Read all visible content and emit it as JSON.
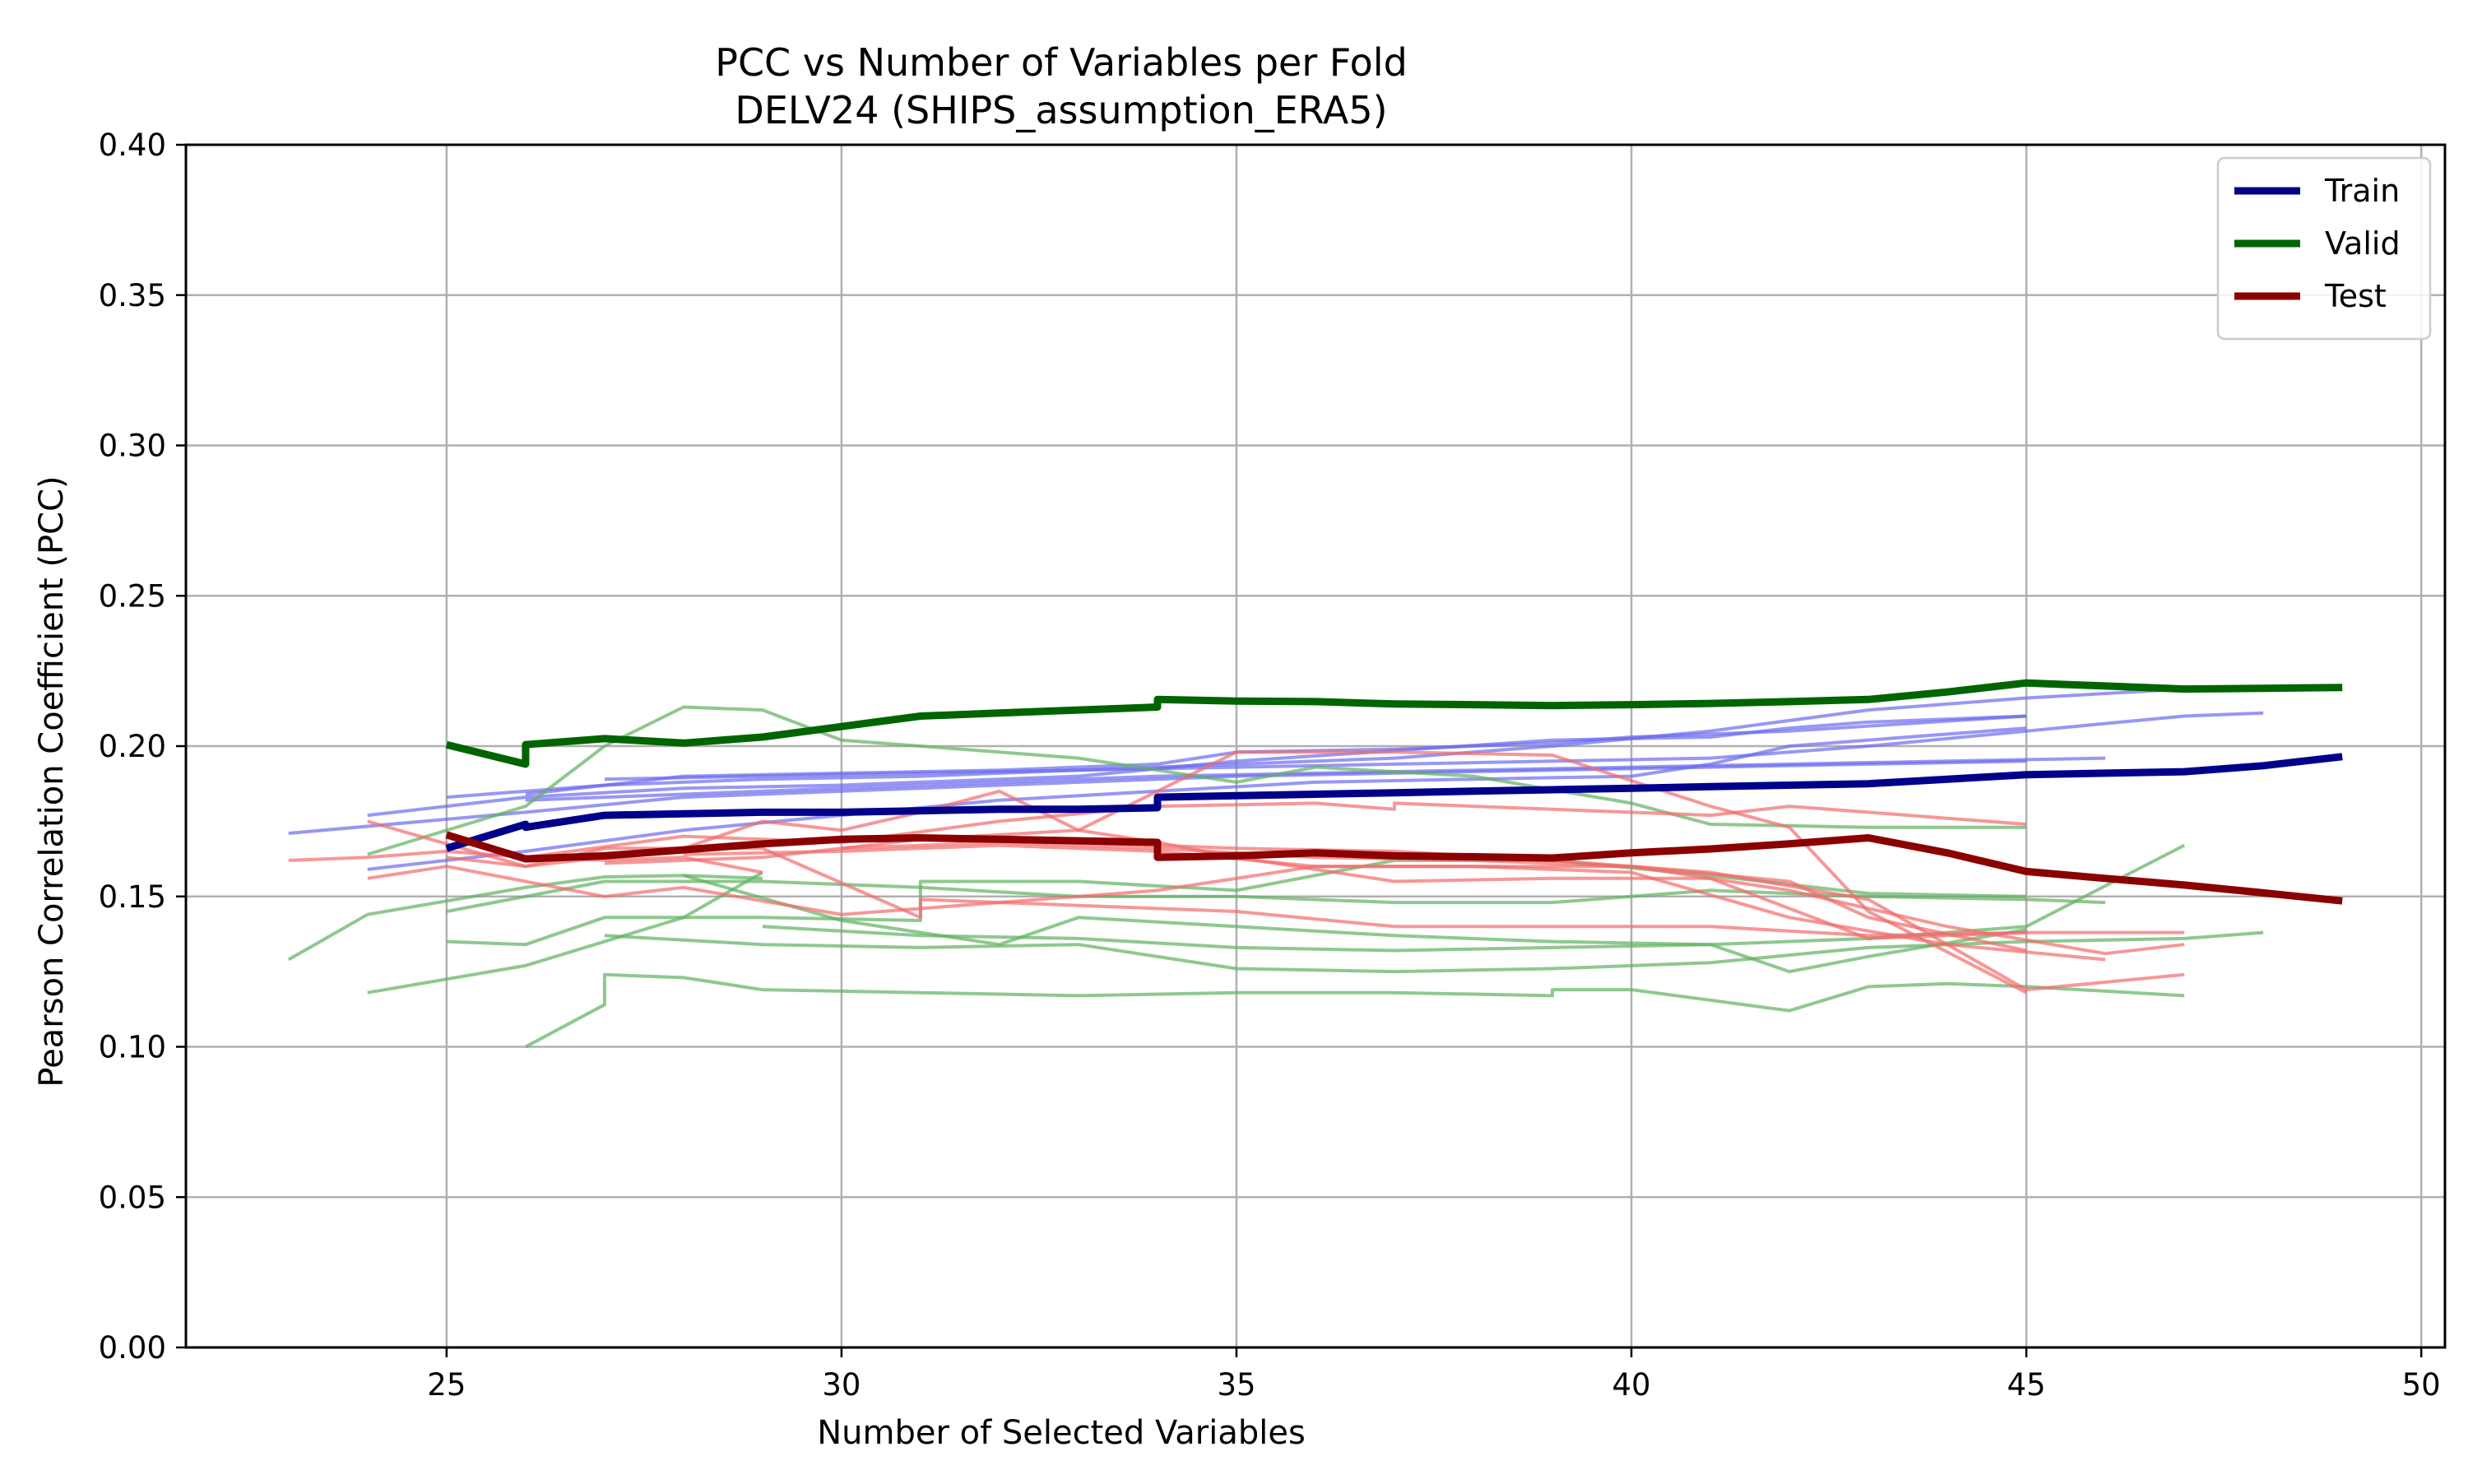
{
  "chart_data": {
    "type": "line",
    "title": "PCC vs Number of Variables per Fold",
    "subtitle": "DELV24 (SHIPS_assumption_ERA5)",
    "xlabel": "Number of Selected Variables",
    "ylabel": "Pearson Correlation Coefficient (PCC)",
    "xlim": [
      21.7,
      50.3
    ],
    "ylim": [
      0.0,
      0.4
    ],
    "x_ticks": [
      "25",
      "30",
      "35",
      "40",
      "45",
      "50"
    ],
    "y_ticks": [
      "0.00",
      "0.05",
      "0.10",
      "0.15",
      "0.20",
      "0.25",
      "0.30",
      "0.35",
      "0.40"
    ],
    "grid": true,
    "legend_position": "top-right",
    "colors": {
      "train": "#00008b",
      "valid": "#006400",
      "test": "#8b0000",
      "train_fold": "#6b6bf0",
      "valid_fold": "#5fb05f",
      "test_fold": "#f26b6b",
      "grid": "#b0b0b0"
    },
    "series": [
      {
        "name": "Train",
        "role": "main",
        "group": "train",
        "x": [
          25,
          26,
          26,
          27,
          28,
          29,
          30,
          31,
          32,
          33,
          34,
          34,
          35,
          36,
          37,
          38,
          39,
          40,
          41,
          42,
          43,
          44,
          45,
          46,
          47,
          48,
          49
        ],
        "y": [
          0.166,
          0.174,
          0.173,
          0.177,
          0.1775,
          0.178,
          0.178,
          0.1785,
          0.179,
          0.179,
          0.1795,
          0.183,
          0.1835,
          0.184,
          0.1845,
          0.185,
          0.1855,
          0.186,
          0.1865,
          0.187,
          0.1875,
          0.189,
          0.1905,
          0.191,
          0.1915,
          0.1935,
          0.1965
        ]
      },
      {
        "name": "Valid",
        "role": "main",
        "group": "valid",
        "x": [
          25,
          26,
          26,
          27,
          28,
          29,
          30,
          31,
          32,
          33,
          34,
          34,
          35,
          36,
          37,
          38,
          39,
          40,
          41,
          42,
          43,
          44,
          45,
          46,
          47,
          48,
          49
        ],
        "y": [
          0.2005,
          0.194,
          0.2005,
          0.2025,
          0.201,
          0.203,
          0.2065,
          0.21,
          0.211,
          0.212,
          0.213,
          0.2155,
          0.215,
          0.2148,
          0.214,
          0.2138,
          0.2135,
          0.2138,
          0.2142,
          0.2148,
          0.2155,
          0.218,
          0.221,
          0.22,
          0.219,
          0.2192,
          0.2195
        ]
      },
      {
        "name": "Test",
        "role": "main",
        "group": "test",
        "x": [
          25,
          26,
          27,
          28,
          29,
          30,
          31,
          32,
          33,
          34,
          34,
          35,
          36,
          37,
          38,
          39,
          40,
          41,
          42,
          43,
          44,
          45,
          46,
          47,
          48,
          49
        ],
        "y": [
          0.1705,
          0.1625,
          0.1635,
          0.1655,
          0.1675,
          0.169,
          0.1695,
          0.169,
          0.1685,
          0.168,
          0.163,
          0.1635,
          0.1645,
          0.1635,
          0.1632,
          0.1628,
          0.1645,
          0.1658,
          0.1675,
          0.1695,
          0.1645,
          0.1583,
          0.156,
          0.1538,
          0.1512,
          0.1485
        ]
      },
      {
        "role": "fold",
        "group": "train",
        "x": [
          23,
          26,
          28,
          30,
          33,
          35,
          37,
          39,
          41,
          43,
          45
        ],
        "y": [
          0.171,
          0.178,
          0.183,
          0.185,
          0.188,
          0.19,
          0.191,
          0.192,
          0.193,
          0.194,
          0.195
        ]
      },
      {
        "role": "fold",
        "group": "train",
        "x": [
          24,
          26,
          28,
          30,
          33,
          35,
          39,
          41,
          42,
          43,
          45
        ],
        "y": [
          0.177,
          0.183,
          0.186,
          0.187,
          0.19,
          0.195,
          0.202,
          0.203,
          0.206,
          0.208,
          0.21
        ]
      },
      {
        "role": "fold",
        "group": "train",
        "x": [
          25,
          27,
          29,
          31,
          33,
          35,
          37,
          39,
          41,
          43,
          45,
          47,
          48
        ],
        "y": [
          0.183,
          0.187,
          0.189,
          0.19,
          0.192,
          0.194,
          0.196,
          0.2,
          0.205,
          0.212,
          0.216,
          0.219,
          0.219
        ]
      },
      {
        "role": "fold",
        "group": "train",
        "x": [
          26,
          28,
          30,
          32,
          34,
          36,
          38,
          40,
          42,
          44,
          46
        ],
        "y": [
          0.182,
          0.184,
          0.186,
          0.188,
          0.19,
          0.191,
          0.192,
          0.193,
          0.194,
          0.195,
          0.196
        ]
      },
      {
        "role": "fold",
        "group": "train",
        "x": [
          27,
          29,
          31,
          33,
          35,
          37,
          39,
          41,
          43,
          45,
          47,
          48
        ],
        "y": [
          0.189,
          0.19,
          0.191,
          0.192,
          0.193,
          0.194,
          0.195,
          0.196,
          0.2,
          0.205,
          0.21,
          0.211
        ]
      },
      {
        "role": "fold",
        "group": "train",
        "x": [
          24,
          26,
          28,
          30,
          32,
          34,
          36,
          38,
          40,
          41,
          42,
          44,
          45
        ],
        "y": [
          0.159,
          0.165,
          0.172,
          0.177,
          0.182,
          0.185,
          0.188,
          0.189,
          0.19,
          0.194,
          0.2,
          0.204,
          0.206
        ]
      },
      {
        "role": "fold",
        "group": "train",
        "x": [
          26,
          28,
          30,
          32,
          34,
          35,
          37,
          39,
          40,
          42,
          45
        ],
        "y": [
          0.184,
          0.19,
          0.191,
          0.192,
          0.194,
          0.198,
          0.199,
          0.201,
          0.203,
          0.205,
          0.21
        ]
      },
      {
        "role": "fold",
        "group": "valid",
        "x": [
          23,
          24,
          26,
          27,
          28,
          29
        ],
        "y": [
          0.129,
          0.144,
          0.153,
          0.1565,
          0.157,
          0.156
        ]
      },
      {
        "role": "fold",
        "group": "valid",
        "x": [
          24,
          26,
          27,
          28,
          29,
          30,
          31,
          32,
          33,
          35,
          36,
          38,
          40,
          41,
          43,
          45
        ],
        "y": [
          0.164,
          0.18,
          0.2,
          0.213,
          0.212,
          0.202,
          0.2,
          0.198,
          0.196,
          0.188,
          0.193,
          0.19,
          0.181,
          0.174,
          0.173,
          0.173
        ]
      },
      {
        "role": "fold",
        "group": "valid",
        "x": [
          24,
          26,
          28,
          29
        ],
        "y": [
          0.118,
          0.127,
          0.143,
          0.158
        ]
      },
      {
        "role": "fold",
        "group": "valid",
        "x": [
          25,
          26,
          27,
          29,
          31,
          31,
          33,
          35,
          37,
          39,
          41,
          42,
          43,
          45
        ],
        "y": [
          0.135,
          0.134,
          0.143,
          0.143,
          0.142,
          0.155,
          0.155,
          0.152,
          0.162,
          0.162,
          0.157,
          0.154,
          0.151,
          0.15
        ]
      },
      {
        "role": "fold",
        "group": "valid",
        "x": [
          25,
          27,
          29,
          31,
          33,
          35,
          37,
          39,
          41,
          43,
          45,
          46
        ],
        "y": [
          0.145,
          0.155,
          0.155,
          0.153,
          0.15,
          0.15,
          0.148,
          0.148,
          0.152,
          0.15,
          0.149,
          0.148
        ]
      },
      {
        "role": "fold",
        "group": "valid",
        "x": [
          26,
          27,
          27,
          28,
          29,
          31,
          33,
          35,
          37,
          39,
          39,
          40,
          42,
          43,
          44,
          45,
          47
        ],
        "y": [
          0.1,
          0.114,
          0.124,
          0.123,
          0.119,
          0.118,
          0.117,
          0.118,
          0.118,
          0.117,
          0.119,
          0.119,
          0.112,
          0.12,
          0.121,
          0.12,
          0.117
        ]
      },
      {
        "role": "fold",
        "group": "valid",
        "x": [
          27,
          29,
          31,
          33,
          35,
          37,
          39,
          41,
          43,
          45,
          47,
          48
        ],
        "y": [
          0.137,
          0.134,
          0.133,
          0.134,
          0.126,
          0.125,
          0.126,
          0.128,
          0.133,
          0.135,
          0.136,
          0.138
        ]
      },
      {
        "role": "fold",
        "group": "valid",
        "x": [
          28,
          30,
          32,
          33,
          35,
          37,
          39,
          41,
          42,
          43,
          45
        ],
        "y": [
          0.157,
          0.142,
          0.134,
          0.143,
          0.14,
          0.137,
          0.135,
          0.134,
          0.125,
          0.13,
          0.139
        ]
      },
      {
        "role": "fold",
        "group": "valid",
        "x": [
          29,
          31,
          33,
          35,
          37,
          39,
          41,
          43,
          45,
          47
        ],
        "y": [
          0.14,
          0.137,
          0.136,
          0.133,
          0.132,
          0.133,
          0.134,
          0.136,
          0.14,
          0.167
        ]
      },
      {
        "role": "fold",
        "group": "test",
        "x": [
          23,
          24,
          25,
          26,
          27,
          28,
          29
        ],
        "y": [
          0.162,
          0.163,
          0.165,
          0.163,
          0.162,
          0.163,
          0.158
        ]
      },
      {
        "role": "fold",
        "group": "test",
        "x": [
          24,
          26,
          28,
          29,
          30,
          31,
          32,
          33,
          34,
          35,
          37,
          39,
          41,
          43,
          45
        ],
        "y": [
          0.175,
          0.16,
          0.166,
          0.175,
          0.172,
          0.178,
          0.185,
          0.172,
          0.168,
          0.163,
          0.155,
          0.156,
          0.156,
          0.136,
          0.138
        ]
      },
      {
        "role": "fold",
        "group": "test",
        "x": [
          24,
          25,
          27,
          28,
          30,
          32,
          34,
          36,
          38,
          40,
          42,
          43,
          45
        ],
        "y": [
          0.156,
          0.16,
          0.15,
          0.153,
          0.144,
          0.148,
          0.152,
          0.16,
          0.16,
          0.16,
          0.155,
          0.143,
          0.132
        ]
      },
      {
        "role": "fold",
        "group": "test",
        "x": [
          25,
          26,
          27,
          29,
          31,
          31,
          33,
          35,
          37,
          39,
          41,
          43,
          45,
          47
        ],
        "y": [
          0.163,
          0.16,
          0.166,
          0.166,
          0.143,
          0.149,
          0.147,
          0.145,
          0.14,
          0.14,
          0.14,
          0.137,
          0.138,
          0.138
        ]
      },
      {
        "role": "fold",
        "group": "test",
        "x": [
          26,
          28,
          30,
          32,
          34,
          36,
          37,
          37,
          39,
          41,
          42,
          43,
          44,
          45
        ],
        "y": [
          0.163,
          0.17,
          0.168,
          0.175,
          0.18,
          0.181,
          0.179,
          0.181,
          0.179,
          0.177,
          0.18,
          0.178,
          0.176,
          0.174
        ]
      },
      {
        "role": "fold",
        "group": "test",
        "x": [
          27,
          29,
          31,
          33,
          35,
          37,
          39,
          41,
          42,
          43,
          45
        ],
        "y": [
          0.161,
          0.163,
          0.169,
          0.172,
          0.198,
          0.198,
          0.197,
          0.18,
          0.173,
          0.145,
          0.118
        ]
      },
      {
        "role": "fold",
        "group": "test",
        "x": [
          28,
          30,
          32,
          34,
          36,
          38,
          40,
          42,
          44,
          46
        ],
        "y": [
          0.164,
          0.165,
          0.167,
          0.165,
          0.16,
          0.16,
          0.158,
          0.143,
          0.134,
          0.129
        ]
      },
      {
        "role": "fold",
        "group": "test",
        "x": [
          29,
          31,
          33,
          35,
          37,
          39,
          41,
          43,
          45,
          47
        ],
        "y": [
          0.168,
          0.17,
          0.168,
          0.166,
          0.165,
          0.162,
          0.158,
          0.149,
          0.119,
          0.124
        ]
      },
      {
        "role": "fold",
        "group": "test",
        "x": [
          30,
          32,
          34,
          36,
          38,
          40,
          42,
          44,
          46,
          47
        ],
        "y": [
          0.166,
          0.168,
          0.166,
          0.163,
          0.162,
          0.16,
          0.152,
          0.14,
          0.131,
          0.134
        ]
      }
    ]
  }
}
